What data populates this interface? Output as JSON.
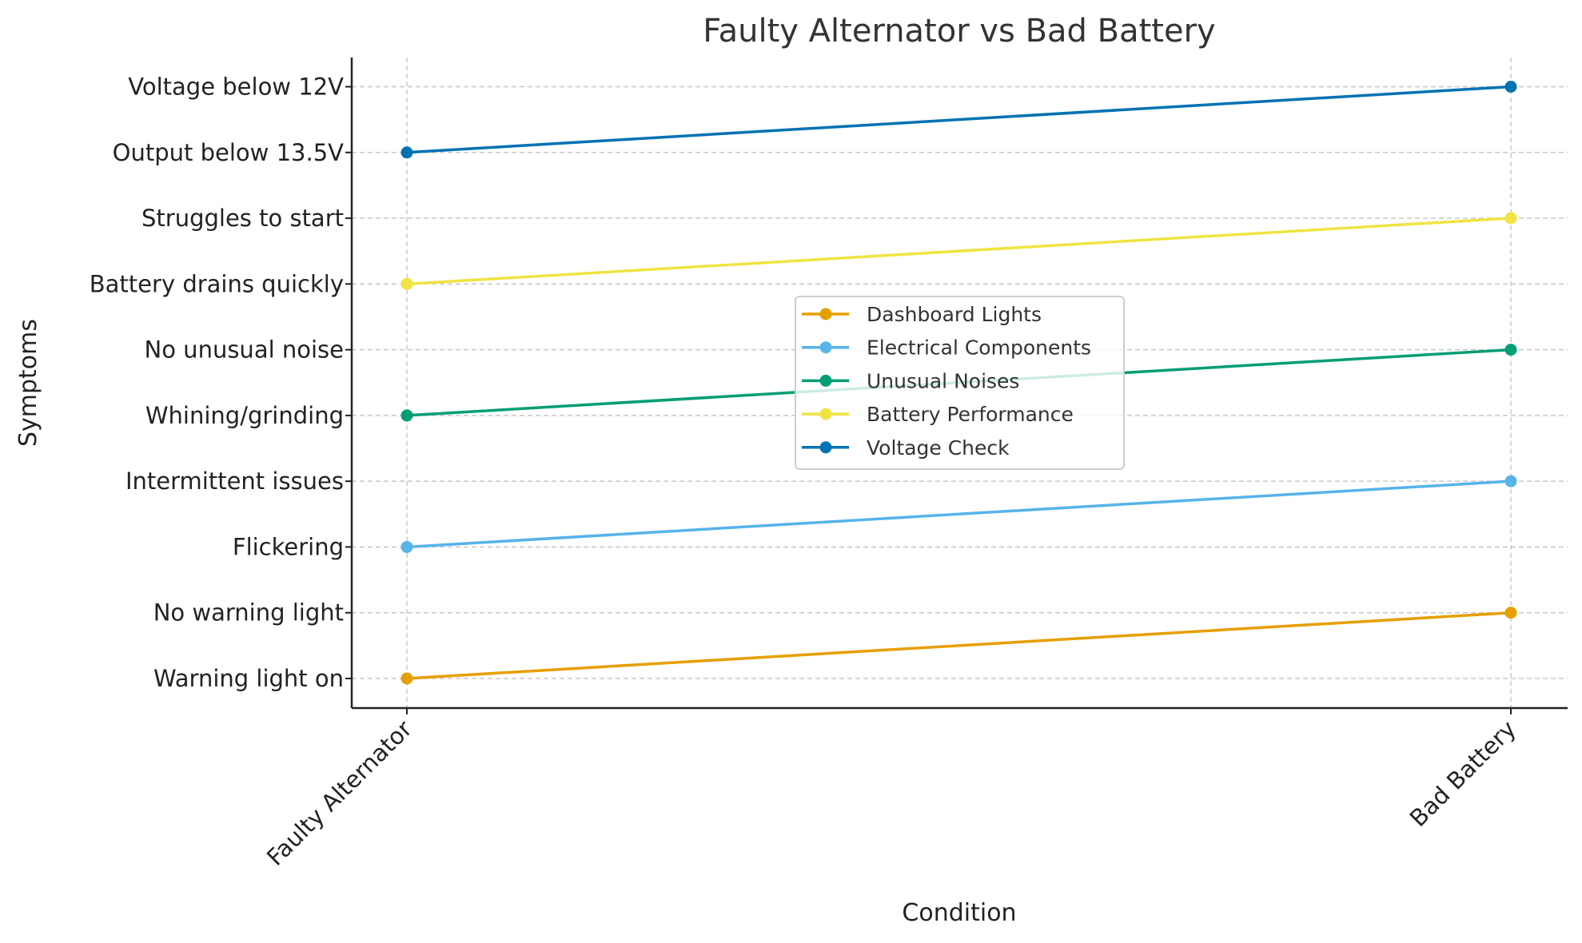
{
  "chart_data": {
    "type": "line",
    "title": "Faulty Alternator vs Bad Battery",
    "xlabel": "Condition",
    "ylabel": "Symptoms",
    "categories": [
      "Faulty Alternator",
      "Bad Battery"
    ],
    "y_categories": [
      "Warning light on",
      "No warning light",
      "Flickering",
      "Intermittent issues",
      "Whining/grinding",
      "No unusual noise",
      "Battery drains quickly",
      "Struggles to start",
      "Output below 13.5V",
      "Voltage below 12V"
    ],
    "grid": true,
    "legend_position": "center",
    "series": [
      {
        "name": "Dashboard Lights",
        "color": "#E69F00",
        "values": [
          "Warning light on",
          "No warning light"
        ]
      },
      {
        "name": "Electrical Components",
        "color": "#56B4E9",
        "values": [
          "Flickering",
          "Intermittent issues"
        ]
      },
      {
        "name": "Unusual Noises",
        "color": "#009E73",
        "values": [
          "Whining/grinding",
          "No unusual noise"
        ]
      },
      {
        "name": "Battery Performance",
        "color": "#F0E442",
        "values": [
          "Battery drains quickly",
          "Struggles to start"
        ]
      },
      {
        "name": "Voltage Check",
        "color": "#0072B2",
        "values": [
          "Output below 13.5V",
          "Voltage below 12V"
        ]
      }
    ]
  }
}
